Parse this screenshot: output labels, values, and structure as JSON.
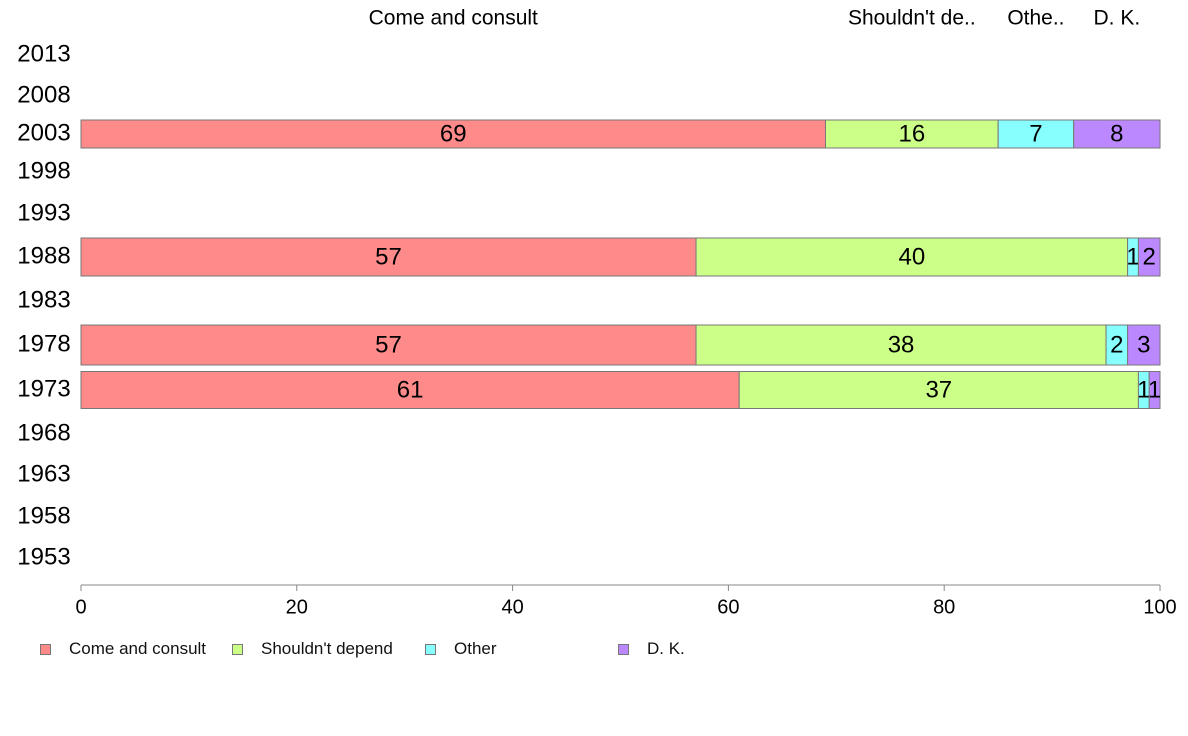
{
  "chart_data": {
    "type": "bar",
    "orientation": "horizontal",
    "stacked": true,
    "categories": [
      "2013",
      "2008",
      "2003",
      "1998",
      "1993",
      "1988",
      "1983",
      "1978",
      "1973",
      "1968",
      "1963",
      "1958",
      "1953"
    ],
    "series": [
      {
        "name": "Come and consult",
        "header_label": "Come and consult",
        "color": "#ff8a8a",
        "values": [
          null,
          null,
          69,
          null,
          null,
          57,
          null,
          57,
          61,
          null,
          null,
          null,
          null
        ]
      },
      {
        "name": "Shouldn't depend",
        "header_label": "Shouldn't de..",
        "color": "#ccff88",
        "values": [
          null,
          null,
          16,
          null,
          null,
          40,
          null,
          38,
          37,
          null,
          null,
          null,
          null
        ]
      },
      {
        "name": "Other",
        "header_label": "Othe..",
        "color": "#88ffff",
        "values": [
          null,
          null,
          7,
          null,
          null,
          1,
          null,
          2,
          1,
          null,
          null,
          null,
          null
        ]
      },
      {
        "name": "D. K.",
        "header_label": "D. K.",
        "color": "#bb88ff",
        "values": [
          null,
          null,
          8,
          null,
          null,
          2,
          null,
          3,
          1,
          null,
          null,
          null,
          null
        ]
      }
    ],
    "xlim": [
      0,
      100
    ],
    "x_ticks": [
      0,
      20,
      40,
      60,
      80,
      100
    ],
    "grid": false,
    "legend_position": "bottom-left"
  }
}
